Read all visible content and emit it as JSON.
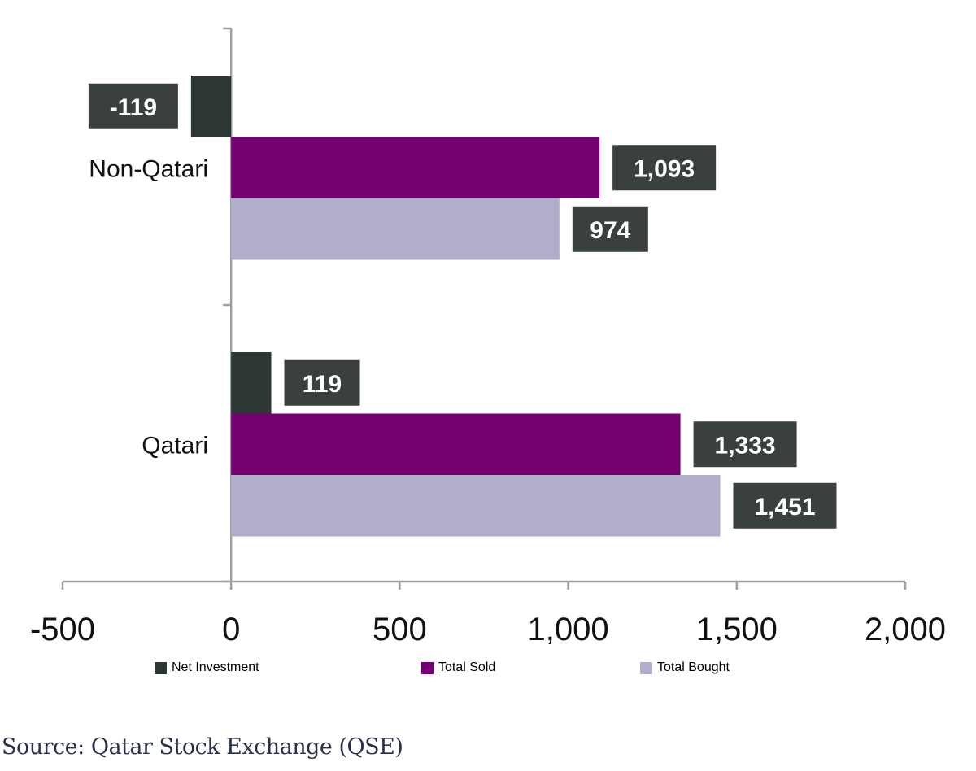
{
  "chart_data": {
    "type": "bar",
    "orientation": "horizontal",
    "categories": [
      "Non-Qatari",
      "Qatari"
    ],
    "series": [
      {
        "name": "Net Investment",
        "values": [
          -119,
          119
        ],
        "labels": [
          "-119",
          "119"
        ],
        "color": "#2b3635"
      },
      {
        "name": "Total Sold",
        "values": [
          1093,
          1333
        ],
        "labels": [
          "1,093",
          "1,333"
        ],
        "color": "#770070"
      },
      {
        "name": "Total Bought",
        "values": [
          974,
          1451
        ],
        "labels": [
          "974",
          "1,451"
        ],
        "color": "#b0aecb"
      }
    ],
    "xlim": [
      -500,
      2000
    ],
    "xticks": [
      -500,
      0,
      500,
      1000,
      1500,
      2000
    ],
    "xtick_labels": [
      "-500",
      "0",
      "500",
      "1,000",
      "1,500",
      "2,000"
    ],
    "label_box_color": "#3a403d",
    "legend_position": "bottom",
    "grid": false
  },
  "source": "Source: Qatar Stock Exchange (QSE)"
}
